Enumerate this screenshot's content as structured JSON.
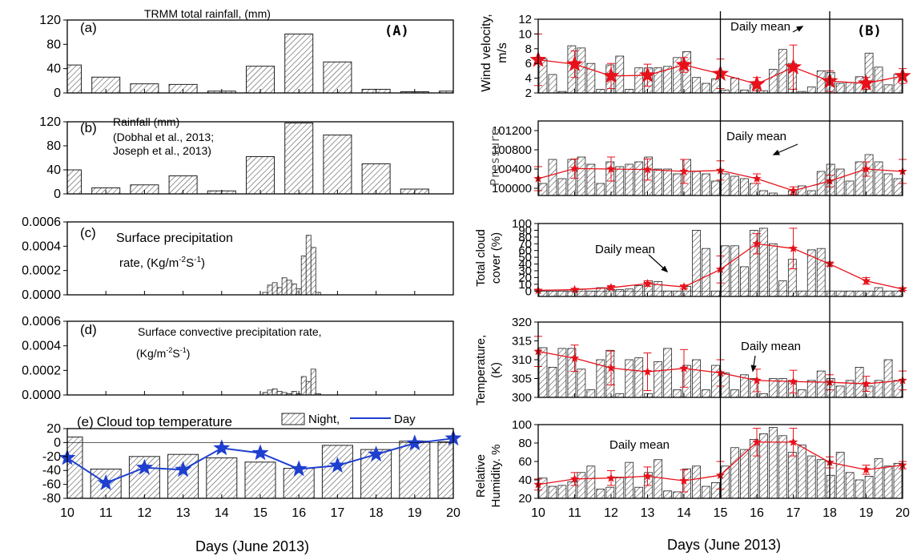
{
  "colors": {
    "bar_fill": "#ffffff",
    "bar_stroke": "#222222",
    "hatch": "#444444",
    "day_line": "#1f3fd0",
    "mean_line": "#e8101a",
    "axis": "#000000"
  },
  "labels": {
    "x_left": "Days (June 2013)",
    "x_right": "Days (June 2013)",
    "panel_A": "(A)",
    "panel_B": "(B)",
    "a_letter": "(a)",
    "a_title": "TRMM total rainfall, (mm)",
    "b_letter": "(b)",
    "b_title_1": "Rainfall (mm)",
    "b_title_2": "(Dobhal et al., 2013;",
    "b_title_3": "Joseph et al., 2013)",
    "c_letter": "(c)",
    "c_title_1": "Surface precipitation",
    "c_title_2": "rate, (Kg/m",
    "d_letter": "(d)",
    "d_title_1": "Surface convective precipitation rate,",
    "d_title_2": "(Kg/m",
    "sup": "-2",
    "s": "S",
    "sup1": "-1",
    "close": ")",
    "e_letter": "(e)",
    "e_title": "Cloud top temperature",
    "legend_night": "Night,",
    "legend_day": "Day",
    "daily_mean": "Daily mean",
    "r1_ylabel_1": "Wind velocity,",
    "r1_ylabel_2": "m/s",
    "r2_ylabel": "Pressure",
    "r3_ylabel_1": "Total cloud",
    "r3_ylabel_2": "cover (%)",
    "r4_ylabel_1": "Temperature,",
    "r4_ylabel_2": "(K)",
    "r5_ylabel_1": "Relative",
    "r5_ylabel_2": "Humidity. %"
  },
  "chart_data": [
    {
      "id": "a",
      "type": "bar",
      "title": "TRMM total rainfall, (mm)",
      "xlim": [
        10,
        20
      ],
      "ylim": [
        0,
        120
      ],
      "yticks": [
        0,
        40,
        80,
        120
      ],
      "x": [
        10,
        11,
        12,
        13,
        14,
        15,
        16,
        17,
        18,
        19,
        20
      ],
      "values": [
        46,
        26,
        15,
        14,
        3,
        44,
        97,
        51,
        6,
        2,
        3
      ]
    },
    {
      "id": "b",
      "type": "bar",
      "title": "Rainfall (mm) (Dobhal et al., 2013; Joseph et al., 2013)",
      "xlim": [
        10,
        20
      ],
      "ylim": [
        0,
        120
      ],
      "yticks": [
        0,
        40,
        80,
        120
      ],
      "x": [
        10,
        11,
        12,
        13,
        14,
        15,
        16,
        17,
        18,
        19,
        20
      ],
      "values": [
        40,
        10,
        15,
        30,
        5,
        62,
        118,
        98,
        50,
        8,
        0
      ]
    },
    {
      "id": "c",
      "type": "bar",
      "title": "Surface precipitation rate, (Kg/m-2S-1)",
      "xlim": [
        10,
        20
      ],
      "ylim": [
        0,
        0.0006
      ],
      "yticks": [
        0.0,
        0.0002,
        0.0004,
        0.0006
      ],
      "x": [
        15.125,
        15.25,
        15.375,
        15.5,
        15.625,
        15.75,
        15.875,
        16.0,
        16.125,
        16.25,
        16.375,
        16.5,
        16.625,
        16.75
      ],
      "values": [
        2e-05,
        8e-05,
        0.0001,
        6e-05,
        0.00014,
        0.00012,
        9e-05,
        5e-05,
        0.00032,
        0.00049,
        0.00039,
        2e-05,
        0.0,
        0.0
      ]
    },
    {
      "id": "d",
      "type": "bar",
      "title": "Surface convective precipitation rate, (Kg/m-2S-1)",
      "xlim": [
        10,
        20
      ],
      "ylim": [
        0,
        0.0006
      ],
      "yticks": [
        0.0,
        0.0002,
        0.0004,
        0.0006
      ],
      "x": [
        15.125,
        15.25,
        15.375,
        15.5,
        15.625,
        15.75,
        15.875,
        16.0,
        16.125,
        16.25,
        16.375,
        16.5
      ],
      "values": [
        2e-05,
        4e-05,
        5e-05,
        3e-05,
        2e-05,
        1e-05,
        3e-05,
        1e-05,
        0.00015,
        0.00011,
        0.00021,
        1e-05
      ]
    },
    {
      "id": "e",
      "type": "bar",
      "title": "Cloud top temperature",
      "xlim": [
        10,
        20
      ],
      "ylim": [
        -80,
        20
      ],
      "yticks": [
        -80,
        -60,
        -40,
        -20,
        0,
        20
      ],
      "x": [
        10,
        11,
        12,
        13,
        14,
        15,
        16,
        17,
        18,
        19,
        20
      ],
      "series": [
        {
          "name": "Night",
          "type": "bar",
          "values": [
            8,
            -38,
            -20,
            -17,
            -22,
            -28,
            -37,
            -4,
            -10,
            2,
            1
          ]
        },
        {
          "name": "Day",
          "type": "line",
          "values": [
            -22,
            -58,
            -36,
            -39,
            -8,
            -15,
            -38,
            -33,
            -17,
            -1,
            6
          ]
        }
      ]
    },
    {
      "id": "r1",
      "type": "bar",
      "ylabel": "Wind velocity, m/s",
      "xlim": [
        10,
        20
      ],
      "ylim": [
        2,
        12
      ],
      "yticks": [
        2,
        4,
        6,
        8,
        10,
        12
      ],
      "bars": [
        6.6,
        4.5,
        2.2,
        8.4,
        8.1,
        6.0,
        2.5,
        5.8,
        7.0,
        2.5,
        5.4,
        5.4,
        5.4,
        5.6,
        6.8,
        7.6,
        4.1,
        3.3,
        3.9,
        2.4,
        4.0,
        2.4,
        3.1,
        2.3,
        5.2,
        7.9,
        6.0,
        2.2,
        2.8,
        5.0,
        4.8,
        3.3,
        3.4,
        4.2,
        7.4,
        5.5,
        3.1,
        4.5
      ],
      "mean_x": [
        10,
        11,
        12,
        13,
        14,
        15,
        16,
        17,
        18,
        19,
        20
      ],
      "mean": [
        6.5,
        5.9,
        4.3,
        4.4,
        5.8,
        4.6,
        3.2,
        5.5,
        3.6,
        3.3,
        4.3
      ],
      "err": [
        3.5,
        1.8,
        1.7,
        1.5,
        1.0,
        2.0,
        0.9,
        3.0,
        1.4,
        0.8,
        1.0
      ]
    },
    {
      "id": "r2",
      "type": "bar",
      "ylabel": "Pressure",
      "xlim": [
        10,
        20
      ],
      "ylim": [
        99850,
        101400
      ],
      "yticks": [
        100000,
        100400,
        100800,
        101200
      ],
      "bars": [
        100100,
        100600,
        100200,
        100600,
        100650,
        100500,
        100100,
        100550,
        100450,
        100500,
        100550,
        100650,
        100400,
        100400,
        100300,
        100600,
        100350,
        100300,
        100150,
        100300,
        100250,
        100200,
        100100,
        99950,
        99900,
        99850,
        99950,
        100050,
        99950,
        100350,
        100500,
        100400,
        100150,
        100550,
        100700,
        100550,
        100300,
        100200
      ],
      "mean_x": [
        10,
        11,
        12,
        13,
        14,
        15,
        16,
        17,
        18,
        19,
        20
      ],
      "mean": [
        100200,
        100410,
        100400,
        100390,
        100350,
        100370,
        100200,
        99950,
        100150,
        100400,
        100350
      ],
      "err": [
        250,
        200,
        250,
        220,
        250,
        200,
        100,
        80,
        120,
        150,
        250
      ]
    },
    {
      "id": "r3",
      "type": "bar",
      "ylabel": "Total cloud cover (%)",
      "xlim": [
        10,
        20
      ],
      "ylim": [
        -8,
        100
      ],
      "yticks": [
        0,
        10,
        20,
        30,
        40,
        50,
        60,
        70,
        80,
        90,
        100
      ],
      "bars": [
        0,
        0,
        0,
        2,
        3,
        0,
        5,
        3,
        2,
        3,
        8,
        15,
        14,
        0,
        0,
        7,
        90,
        63,
        0,
        67,
        67,
        36,
        90,
        93,
        70,
        15,
        47,
        0,
        61,
        63,
        0,
        0,
        0,
        0,
        0,
        5,
        0,
        0
      ],
      "mean_x": [
        10,
        11,
        12,
        13,
        14,
        15,
        16,
        17,
        18,
        19,
        20
      ],
      "mean": [
        1,
        2,
        5,
        11,
        6,
        32,
        70,
        63,
        40,
        15,
        3
      ],
      "err": [
        1,
        2,
        3,
        4,
        3,
        20,
        15,
        30,
        3,
        5,
        2
      ]
    },
    {
      "id": "r4",
      "type": "bar",
      "ylabel": "Temperature, (K)",
      "xlim": [
        10,
        20
      ],
      "ylim": [
        300,
        320
      ],
      "yticks": [
        300,
        305,
        310,
        315,
        320
      ],
      "bars": [
        313.2,
        308.0,
        313.0,
        313.0,
        307.5,
        302.0,
        310.0,
        312.5,
        301.0,
        310.0,
        310.5,
        301.0,
        309.5,
        313.0,
        302.0,
        308.5,
        310.0,
        302.0,
        308.5,
        306.5,
        302.0,
        306.0,
        305.0,
        301.0,
        305.0,
        305.0,
        304.5,
        302.0,
        304.5,
        307.0,
        305.0,
        303.0,
        304.5,
        308.0,
        303.0,
        304.5,
        310.0,
        304.5
      ],
      "mean_x": [
        10,
        11,
        12,
        13,
        14,
        15,
        16,
        17,
        18,
        19,
        20
      ],
      "mean": [
        312.2,
        310.4,
        307.8,
        306.8,
        307.7,
        306.5,
        304.5,
        304.2,
        304.0,
        303.6,
        304.5
      ],
      "err": [
        4.0,
        3.5,
        4.5,
        5.0,
        5.0,
        3.5,
        3.0,
        3.0,
        2.0,
        2.0,
        2.5
      ]
    },
    {
      "id": "r5",
      "type": "bar",
      "ylabel": "Relative Humidity. %",
      "xlim": [
        10,
        20
      ],
      "ylim": [
        20,
        100
      ],
      "yticks": [
        20,
        40,
        60,
        80,
        100
      ],
      "bars": [
        42,
        33,
        34,
        38,
        48,
        55,
        30,
        32,
        43,
        59,
        32,
        48,
        62,
        28,
        27,
        52,
        55,
        33,
        37,
        55,
        75,
        73,
        84,
        90,
        97,
        88,
        70,
        78,
        66,
        62,
        45,
        70,
        48,
        40,
        44,
        63,
        55,
        58
      ],
      "mean_x": [
        10,
        11,
        12,
        13,
        14,
        15,
        16,
        17,
        18,
        19,
        20
      ],
      "mean": [
        35,
        41,
        42,
        44,
        39,
        45,
        81,
        81,
        59,
        51,
        56
      ],
      "err": [
        6,
        7,
        8,
        10,
        12,
        15,
        15,
        15,
        6,
        5,
        4
      ]
    }
  ]
}
